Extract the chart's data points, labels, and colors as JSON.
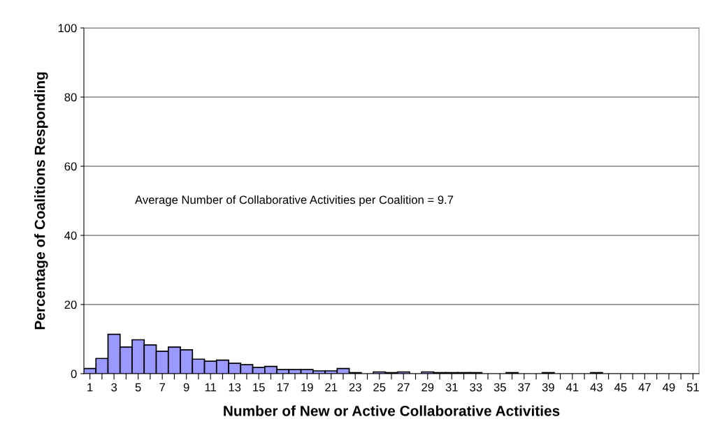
{
  "chart_data": {
    "type": "bar",
    "xlabel": "Number of New or Active Collaborative Activities",
    "ylabel": "Percentage of Coalitions Responding",
    "categories": [
      "1",
      null,
      "3",
      null,
      "5",
      null,
      "7",
      null,
      "9",
      null,
      "11",
      null,
      "13",
      null,
      "15",
      null,
      "17",
      null,
      "19",
      null,
      "21",
      null,
      "23",
      null,
      "25",
      null,
      "27",
      null,
      "29",
      null,
      "31",
      null,
      "33",
      null,
      "35",
      null,
      "37",
      null,
      "39",
      null,
      "41",
      null,
      "43",
      null,
      "45",
      null,
      "47",
      null,
      "49",
      null,
      "51"
    ],
    "values": [
      1.5,
      4.4,
      11.4,
      7.7,
      9.8,
      8.3,
      6.5,
      7.7,
      6.9,
      4.2,
      3.6,
      3.9,
      3.0,
      2.6,
      1.8,
      2.1,
      1.2,
      1.2,
      1.2,
      0.8,
      0.8,
      1.5,
      0.3,
      0,
      0.5,
      0.3,
      0.5,
      0,
      0.5,
      0.3,
      0.3,
      0.3,
      0.3,
      0,
      0,
      0.3,
      0,
      0,
      0.3,
      0,
      0,
      0,
      0.3,
      0,
      0,
      0,
      0,
      0,
      0,
      0,
      0
    ],
    "color": "#9999ff",
    "ylim": [
      0,
      100
    ],
    "yticks": [
      0,
      20,
      40,
      60,
      80,
      100
    ],
    "grid": "y",
    "annotations": [
      "Average Number of Collaborative Activities per Coalition = 9.7"
    ]
  }
}
